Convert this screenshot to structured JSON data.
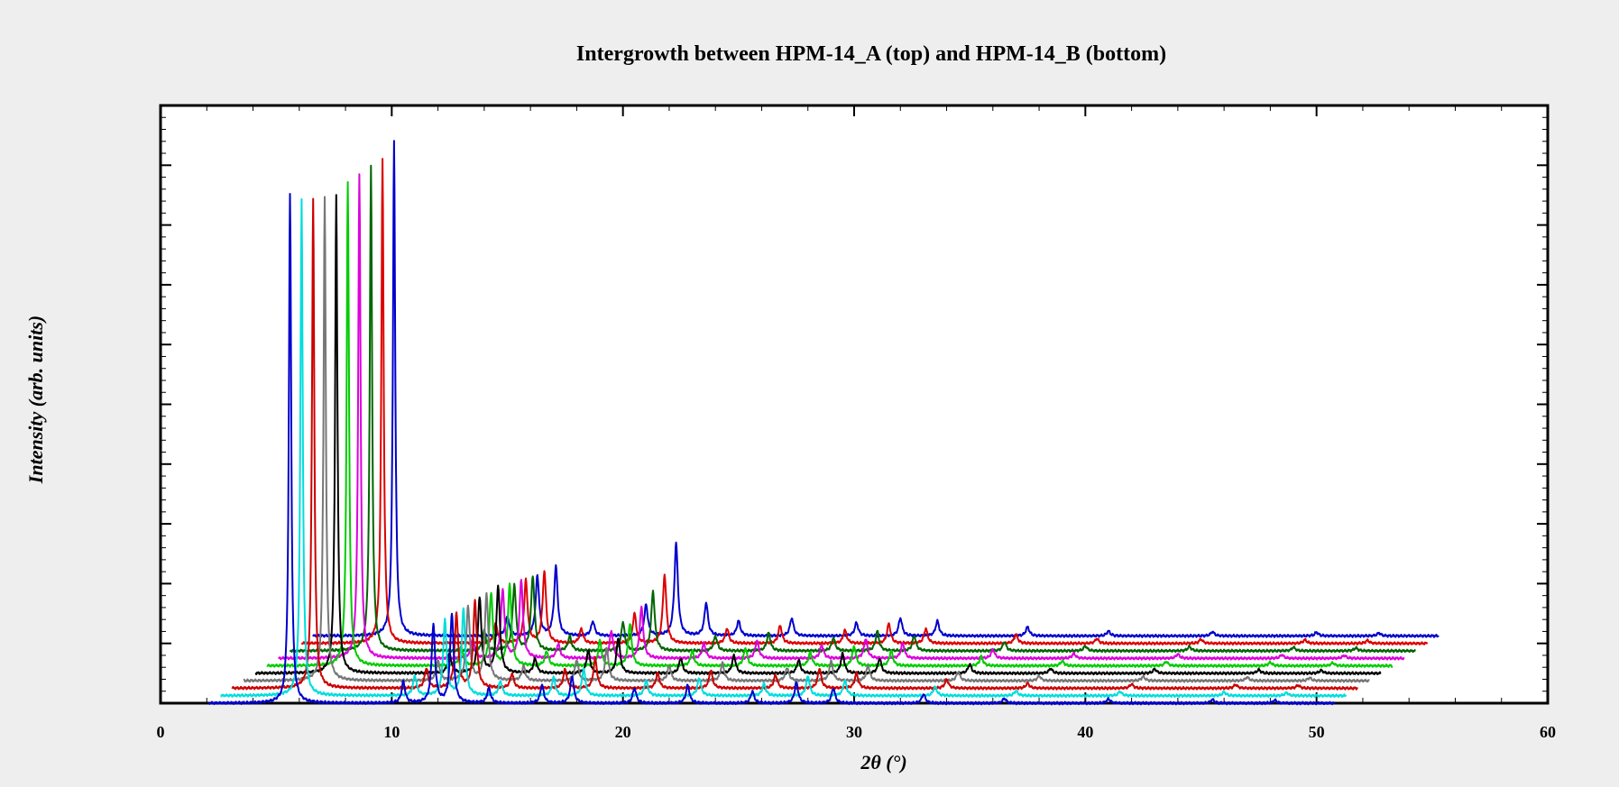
{
  "chart_data": {
    "type": "line",
    "title": "Intergrowth between HPM-14_A (top) and HPM-14_B (bottom)",
    "xlabel": "2θ (°)",
    "ylabel": "Intensity (arb. units)",
    "xlim": [
      0,
      60
    ],
    "ylim": [
      0,
      10
    ],
    "x_ticks": [
      0,
      10,
      20,
      30,
      40,
      50,
      60
    ],
    "grid": false,
    "legend": "none",
    "x_range": [
      2.1,
      50.8
    ],
    "offset_per_pattern": {
      "x_deg": 0.5,
      "y": 0.125
    },
    "series": [
      {
        "color": "#0000cc",
        "offset_index": 0,
        "peaks": [
          [
            5.6,
            8.5
          ],
          [
            10.5,
            0.35
          ],
          [
            11.8,
            1.3
          ],
          [
            12.6,
            1.5
          ],
          [
            14.2,
            0.25
          ],
          [
            16.5,
            0.3
          ],
          [
            17.8,
            0.45
          ],
          [
            20.5,
            0.25
          ],
          [
            22.8,
            0.3
          ],
          [
            25.6,
            0.2
          ],
          [
            27.5,
            0.35
          ],
          [
            29.1,
            0.25
          ],
          [
            33.0,
            0.15
          ],
          [
            36.5,
            0.08
          ],
          [
            41.0,
            0.07
          ],
          [
            45.5,
            0.06
          ],
          [
            48.2,
            0.05
          ]
        ]
      },
      {
        "color": "#00dddd",
        "offset_index": 1,
        "peaks": [
          [
            5.6,
            8.3
          ],
          [
            10.5,
            0.33
          ],
          [
            11.8,
            1.25
          ],
          [
            12.6,
            1.45
          ],
          [
            14.2,
            0.24
          ],
          [
            16.5,
            0.3
          ],
          [
            17.8,
            0.45
          ],
          [
            20.5,
            0.25
          ],
          [
            22.8,
            0.3
          ],
          [
            25.6,
            0.2
          ],
          [
            27.5,
            0.33
          ],
          [
            29.1,
            0.25
          ],
          [
            33.0,
            0.15
          ],
          [
            36.5,
            0.08
          ],
          [
            41.0,
            0.07
          ],
          [
            45.5,
            0.06
          ],
          [
            48.2,
            0.05
          ]
        ]
      },
      {
        "color": "#cc0000",
        "offset_index": 2,
        "peaks": [
          [
            5.6,
            8.2
          ],
          [
            10.5,
            0.33
          ],
          [
            11.8,
            1.25
          ],
          [
            12.6,
            1.45
          ],
          [
            14.2,
            0.24
          ],
          [
            16.5,
            0.32
          ],
          [
            17.8,
            0.5
          ],
          [
            20.5,
            0.25
          ],
          [
            22.8,
            0.3
          ],
          [
            25.6,
            0.22
          ],
          [
            27.5,
            0.33
          ],
          [
            29.1,
            0.25
          ],
          [
            33.0,
            0.15
          ],
          [
            36.5,
            0.08
          ],
          [
            41.0,
            0.07
          ],
          [
            45.5,
            0.06
          ],
          [
            48.2,
            0.05
          ]
        ]
      },
      {
        "color": "#777777",
        "offset_index": 3,
        "peaks": [
          [
            5.6,
            8.1
          ],
          [
            10.5,
            0.33
          ],
          [
            11.8,
            1.25
          ],
          [
            12.6,
            1.45
          ],
          [
            14.2,
            0.24
          ],
          [
            16.5,
            0.35
          ],
          [
            17.8,
            0.55
          ],
          [
            20.5,
            0.25
          ],
          [
            22.8,
            0.3
          ],
          [
            25.6,
            0.22
          ],
          [
            27.5,
            0.33
          ],
          [
            29.1,
            0.25
          ],
          [
            33.0,
            0.15
          ],
          [
            36.5,
            0.08
          ],
          [
            41.0,
            0.07
          ],
          [
            45.5,
            0.06
          ],
          [
            48.2,
            0.05
          ]
        ]
      },
      {
        "color": "#000000",
        "offset_index": 4,
        "peaks": [
          [
            5.6,
            8.0
          ],
          [
            10.5,
            0.33
          ],
          [
            11.8,
            1.25
          ],
          [
            12.6,
            1.45
          ],
          [
            14.2,
            0.24
          ],
          [
            16.5,
            0.38
          ],
          [
            17.8,
            0.6
          ],
          [
            20.5,
            0.25
          ],
          [
            22.8,
            0.3
          ],
          [
            25.6,
            0.22
          ],
          [
            27.5,
            0.33
          ],
          [
            29.1,
            0.25
          ],
          [
            33.0,
            0.15
          ],
          [
            36.5,
            0.08
          ],
          [
            41.0,
            0.07
          ],
          [
            45.5,
            0.06
          ],
          [
            48.2,
            0.05
          ]
        ]
      },
      {
        "color": "#00cc00",
        "offset_index": 5,
        "peaks": [
          [
            5.6,
            8.1
          ],
          [
            10.5,
            0.33
          ],
          [
            11.8,
            1.2
          ],
          [
            12.6,
            1.35
          ],
          [
            14.2,
            0.24
          ],
          [
            16.5,
            0.42
          ],
          [
            17.8,
            0.7
          ],
          [
            20.5,
            0.25
          ],
          [
            22.8,
            0.3
          ],
          [
            25.6,
            0.22
          ],
          [
            27.5,
            0.33
          ],
          [
            29.1,
            0.25
          ],
          [
            33.0,
            0.15
          ],
          [
            36.5,
            0.08
          ],
          [
            41.0,
            0.07
          ],
          [
            45.5,
            0.06
          ],
          [
            48.2,
            0.05
          ]
        ]
      },
      {
        "color": "#dd00dd",
        "offset_index": 6,
        "peaks": [
          [
            5.6,
            8.1
          ],
          [
            10.5,
            0.33
          ],
          [
            11.8,
            1.15
          ],
          [
            12.6,
            1.3
          ],
          [
            14.2,
            0.24
          ],
          [
            16.5,
            0.45
          ],
          [
            17.8,
            0.85
          ],
          [
            20.5,
            0.25
          ],
          [
            22.8,
            0.3
          ],
          [
            25.6,
            0.22
          ],
          [
            27.5,
            0.33
          ],
          [
            29.1,
            0.25
          ],
          [
            33.0,
            0.15
          ],
          [
            36.5,
            0.08
          ],
          [
            41.0,
            0.07
          ],
          [
            45.5,
            0.06
          ],
          [
            48.2,
            0.05
          ]
        ]
      },
      {
        "color": "#006600",
        "offset_index": 7,
        "peaks": [
          [
            5.6,
            8.1
          ],
          [
            10.5,
            0.33
          ],
          [
            11.8,
            1.1
          ],
          [
            12.6,
            1.25
          ],
          [
            14.2,
            0.24
          ],
          [
            16.5,
            0.48
          ],
          [
            17.8,
            1.0
          ],
          [
            20.5,
            0.25
          ],
          [
            22.8,
            0.3
          ],
          [
            25.6,
            0.22
          ],
          [
            27.5,
            0.33
          ],
          [
            29.1,
            0.25
          ],
          [
            33.0,
            0.15
          ],
          [
            36.5,
            0.08
          ],
          [
            41.0,
            0.07
          ],
          [
            45.5,
            0.06
          ],
          [
            48.2,
            0.05
          ]
        ]
      },
      {
        "color": "#dd0000",
        "offset_index": 8,
        "peaks": [
          [
            5.6,
            8.1
          ],
          [
            10.5,
            0.33
          ],
          [
            11.8,
            1.05
          ],
          [
            12.6,
            1.2
          ],
          [
            14.2,
            0.24
          ],
          [
            16.5,
            0.5
          ],
          [
            17.8,
            1.15
          ],
          [
            20.5,
            0.25
          ],
          [
            22.8,
            0.3
          ],
          [
            25.6,
            0.22
          ],
          [
            27.5,
            0.33
          ],
          [
            29.1,
            0.25
          ],
          [
            33.0,
            0.15
          ],
          [
            36.5,
            0.08
          ],
          [
            41.0,
            0.07
          ],
          [
            45.5,
            0.06
          ],
          [
            48.2,
            0.05
          ]
        ]
      },
      {
        "color": "#0000cc",
        "offset_index": 9,
        "peaks": [
          [
            5.6,
            8.3
          ],
          [
            10.5,
            0.33
          ],
          [
            11.8,
            1.0
          ],
          [
            12.6,
            1.15
          ],
          [
            14.2,
            0.24
          ],
          [
            16.5,
            0.52
          ],
          [
            17.8,
            1.55
          ],
          [
            19.1,
            0.55
          ],
          [
            20.5,
            0.25
          ],
          [
            22.8,
            0.3
          ],
          [
            25.6,
            0.22
          ],
          [
            27.5,
            0.3
          ],
          [
            29.1,
            0.25
          ],
          [
            33.0,
            0.15
          ],
          [
            36.5,
            0.08
          ],
          [
            41.0,
            0.07
          ],
          [
            45.5,
            0.06
          ],
          [
            48.2,
            0.05
          ]
        ]
      }
    ]
  }
}
